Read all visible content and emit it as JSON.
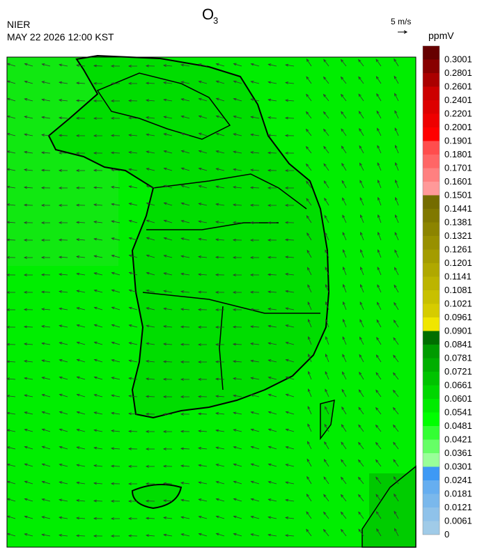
{
  "header": {
    "title": "O",
    "title_sub": "3",
    "agency": "NIER",
    "datetime": "MAY 22 2026 12:00 KST",
    "wind_scale": "5 m/s",
    "unit": "ppmV"
  },
  "colorbar": {
    "labels": [
      0,
      0.0061,
      0.0121,
      0.0181,
      0.0241,
      0.0301,
      0.0361,
      0.0421,
      0.0481,
      0.0541,
      0.0601,
      0.0661,
      0.0721,
      0.0781,
      0.0841,
      0.0901,
      0.0961,
      0.1021,
      0.1081,
      0.1141,
      0.1201,
      0.1261,
      0.1321,
      0.1381,
      0.1441,
      0.1501,
      0.1601,
      0.1701,
      0.1801,
      0.1901,
      0.2001,
      0.2201,
      0.2401,
      0.2601,
      0.2801,
      0.3001
    ],
    "colors": [
      "#a0cbe8",
      "#8fc2ea",
      "#7ab8ec",
      "#66aef0",
      "#3d99f5",
      "#99ff99",
      "#66ff66",
      "#33ff33",
      "#00ff00",
      "#00eb00",
      "#00d700",
      "#00c300",
      "#00af00",
      "#009b00",
      "#006e00",
      "#f0e600",
      "#d6cc00",
      "#c8c000",
      "#bcb400",
      "#b0a800",
      "#a49c00",
      "#989000",
      "#8c8400",
      "#807800",
      "#746c00",
      "#ff9999",
      "#ff8080",
      "#ff6666",
      "#ff4d4d",
      "#ff0000",
      "#ee0000",
      "#dd0000",
      "#cc0000",
      "#aa0000",
      "#880000",
      "#660000"
    ]
  }
}
